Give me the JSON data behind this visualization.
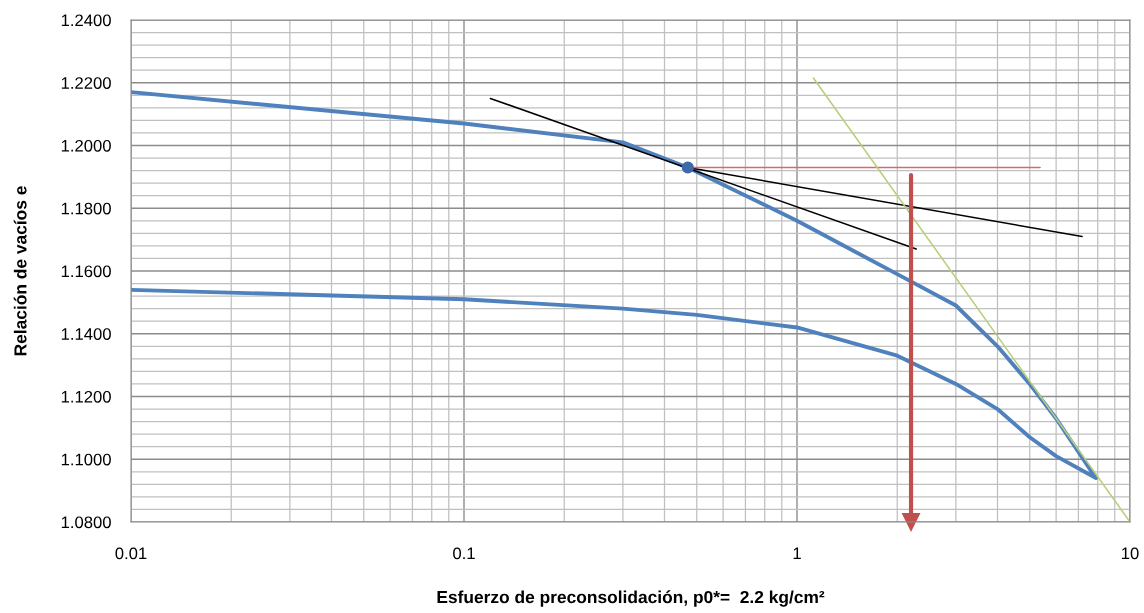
{
  "chart_data": {
    "type": "line",
    "xlabel": "Esfuerzo de preconsolidación, p0*=  2.2 kg/cm²",
    "ylabel": "Relación de vacíos e",
    "log": "x",
    "grid": true,
    "marker": "none",
    "xlim": [
      0.01,
      10
    ],
    "xticks": [
      0.01,
      0.1,
      1,
      10
    ],
    "ylim": [
      1.08,
      1.24
    ],
    "yticks": [
      {
        "value": 1.08,
        "label": "1.0800"
      },
      {
        "value": 1.1,
        "label": "1.1000"
      },
      {
        "value": 1.12,
        "label": "1.1200"
      },
      {
        "value": 1.14,
        "label": "1.1400"
      },
      {
        "value": 1.16,
        "label": "1.1600"
      },
      {
        "value": 1.18,
        "label": "1.1800"
      },
      {
        "value": 1.2,
        "label": "1.2000"
      },
      {
        "value": 1.22,
        "label": "1.2200"
      },
      {
        "value": 1.24,
        "label": "1.2400"
      }
    ],
    "series": [
      {
        "color": "#4f81bd",
        "x": [
          0.01,
          0.1,
          0.3,
          0.47,
          1,
          2,
          3,
          4,
          5,
          6,
          7.9,
          6,
          5,
          4,
          3,
          2,
          1,
          0.5,
          0.3,
          0.1,
          0.01
        ],
        "values": [
          1.217,
          1.207,
          1.201,
          1.193,
          1.176,
          1.159,
          1.149,
          1.136,
          1.124,
          1.113,
          1.094,
          1.101,
          1.107,
          1.116,
          1.124,
          1.133,
          1.142,
          1.146,
          1.148,
          1.151,
          1.154
        ]
      },
      {
        "color": "#000000",
        "x": [
          0.12,
          2.28
        ],
        "values": [
          1.215,
          1.167
        ]
      },
      {
        "color": "#000000",
        "x": [
          0.47,
          7.18
        ],
        "values": [
          1.193,
          1.171
        ]
      },
      {
        "color": "#d9696b",
        "x": [
          0.47,
          5.37
        ],
        "values": [
          1.193,
          1.193
        ]
      },
      {
        "color": "#b5cf7a",
        "x": [
          1.12,
          10
        ],
        "values": [
          1.2215,
          1.08
        ]
      },
      {
        "color": "#c0504d",
        "x": [
          2.2,
          2.2
        ],
        "values": [
          1.1906,
          1.08
        ],
        "marker": "triangle"
      },
      {
        "type": "scatter",
        "color": "#3c6aa8",
        "x": [
          0.47
        ],
        "values": [
          1.193
        ],
        "marker": "circle"
      }
    ]
  }
}
